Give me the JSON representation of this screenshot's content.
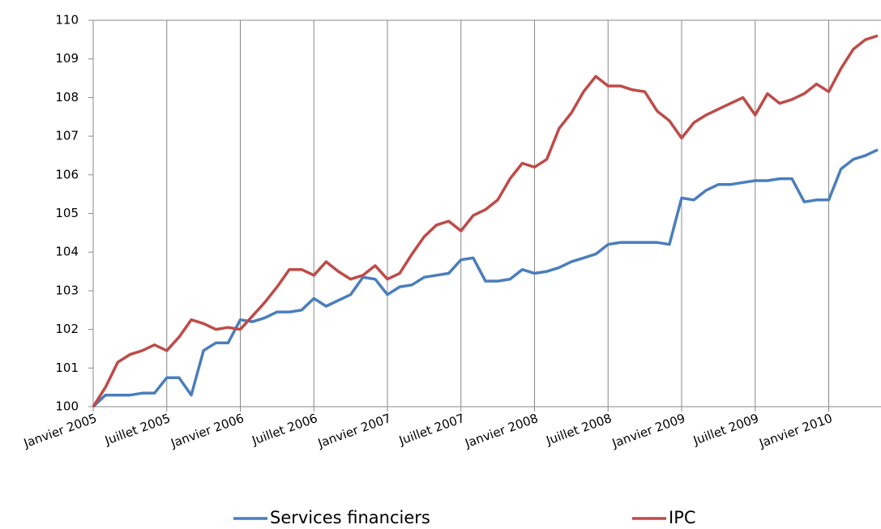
{
  "chart_data": {
    "type": "line",
    "categories": [
      "Janvier 2005",
      null,
      null,
      null,
      null,
      null,
      "Juillet 2005",
      null,
      null,
      null,
      null,
      null,
      "Janvier 2006",
      null,
      null,
      null,
      null,
      null,
      "Juillet 2006",
      null,
      null,
      null,
      null,
      null,
      "Janvier 2007",
      null,
      null,
      null,
      null,
      null,
      "Juillet 2007",
      null,
      null,
      null,
      null,
      null,
      "Janvier 2008",
      null,
      null,
      null,
      null,
      null,
      "Juillet 2008",
      null,
      null,
      null,
      null,
      null,
      "Janvier 2009",
      null,
      null,
      null,
      null,
      null,
      "Juillet 2009",
      null,
      null,
      null,
      null,
      null,
      "Janvier 2010",
      null,
      null,
      null,
      null
    ],
    "series": [
      {
        "name": "Services financiers",
        "color": "#4a7ebb",
        "values": [
          100.0,
          100.3,
          100.3,
          100.3,
          100.35,
          100.35,
          100.75,
          100.75,
          100.3,
          101.45,
          101.65,
          101.65,
          102.25,
          102.2,
          102.3,
          102.45,
          102.45,
          102.5,
          102.8,
          102.6,
          102.75,
          102.9,
          103.35,
          103.3,
          102.9,
          103.1,
          103.15,
          103.35,
          103.4,
          103.45,
          103.8,
          103.85,
          103.25,
          103.25,
          103.3,
          103.55,
          103.45,
          103.5,
          103.6,
          103.75,
          103.85,
          103.95,
          104.2,
          104.25,
          104.25,
          104.25,
          104.25,
          104.2,
          105.4,
          105.35,
          105.6,
          105.75,
          105.75,
          105.8,
          105.85,
          105.85,
          105.9,
          105.9,
          105.3,
          105.35,
          105.35,
          106.15,
          106.4,
          106.5,
          106.65
        ]
      },
      {
        "name": "IPC",
        "color": "#be4b48",
        "values": [
          100.0,
          100.5,
          101.15,
          101.35,
          101.45,
          101.6,
          101.45,
          101.8,
          102.25,
          102.15,
          102.0,
          102.05,
          102.0,
          102.35,
          102.7,
          103.1,
          103.55,
          103.55,
          103.4,
          103.75,
          103.5,
          103.3,
          103.4,
          103.65,
          103.3,
          103.45,
          103.95,
          104.4,
          104.7,
          104.8,
          104.55,
          104.95,
          105.1,
          105.35,
          105.9,
          106.3,
          106.2,
          106.4,
          107.2,
          107.6,
          108.15,
          108.55,
          108.3,
          108.3,
          108.2,
          108.15,
          107.65,
          107.4,
          106.95,
          107.35,
          107.55,
          107.7,
          107.85,
          108.0,
          107.55,
          108.1,
          107.85,
          107.95,
          108.1,
          108.35,
          108.15,
          108.75,
          109.25,
          109.5,
          109.6
        ]
      }
    ],
    "ylim": [
      100,
      110
    ],
    "yticks": [
      100,
      101,
      102,
      103,
      104,
      105,
      106,
      107,
      108,
      109,
      110
    ],
    "grid": true,
    "legend": "bottom"
  }
}
